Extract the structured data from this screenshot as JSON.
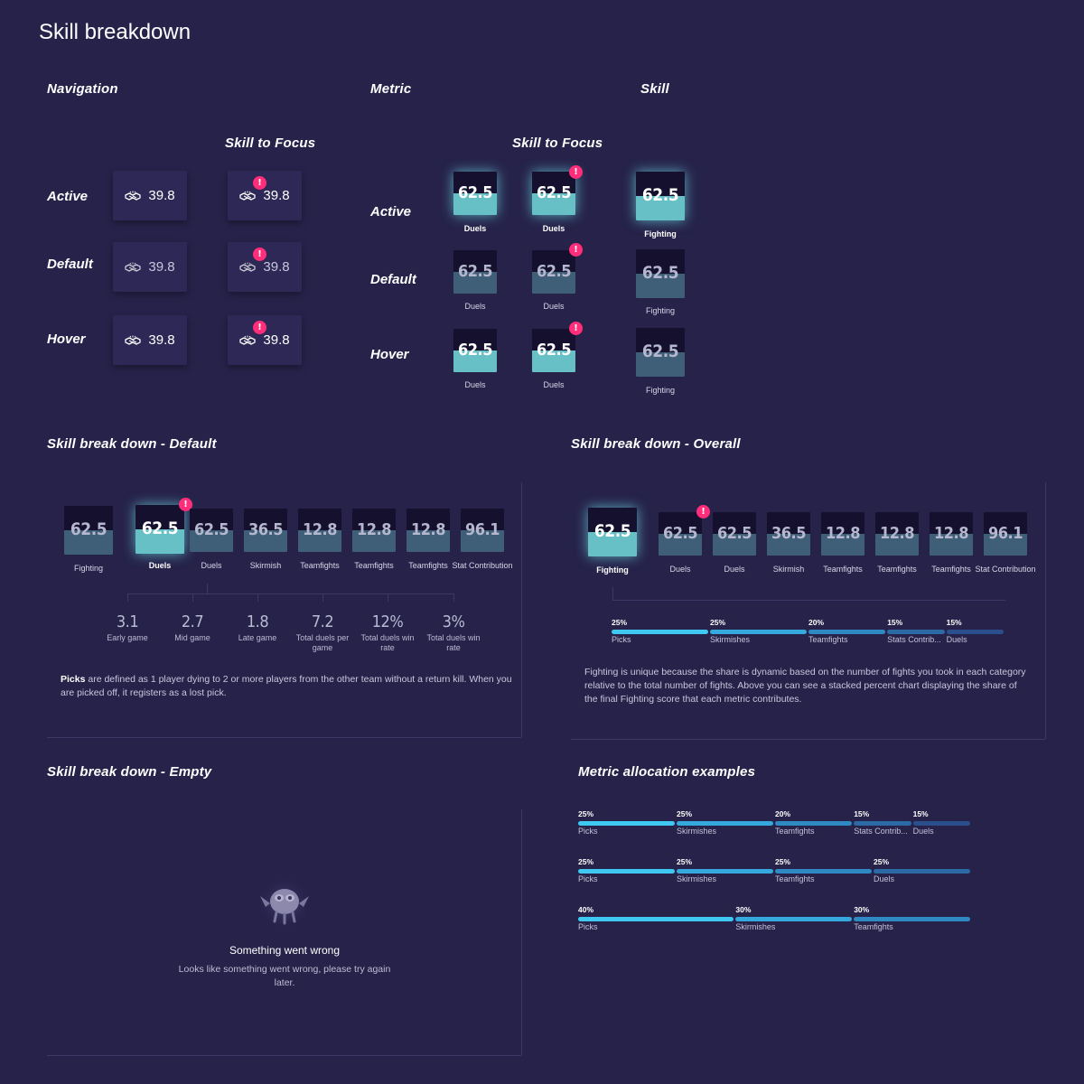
{
  "page_title": "Skill breakdown",
  "columns": {
    "navigation": "Navigation",
    "metric": "Metric",
    "skill": "Skill"
  },
  "skill_to_focus": "Skill to Focus",
  "states": [
    "Active",
    "Default",
    "Hover"
  ],
  "nav_value": "39.8",
  "nav_icon": "handshake-icon",
  "alert_glyph": "!",
  "metric_tile": {
    "value": "62.5",
    "caption": "Duels"
  },
  "skill_tile": {
    "value": "62.5",
    "caption": "Fighting"
  },
  "breakdown_default": {
    "title": "Skill break down - Default",
    "tiles": [
      {
        "value": "62.5",
        "caption": "Fighting"
      },
      {
        "value": "62.5",
        "caption": "Duels"
      },
      {
        "value": "62.5",
        "caption": "Duels"
      },
      {
        "value": "36.5",
        "caption": "Skirmish"
      },
      {
        "value": "12.8",
        "caption": "Teamfights"
      },
      {
        "value": "12.8",
        "caption": "Teamfights"
      },
      {
        "value": "12.8",
        "caption": "Teamfights"
      },
      {
        "value": "96.1",
        "caption": "Stat Contribution"
      }
    ],
    "sub_stats": [
      {
        "value": "3.1",
        "label": "Early game"
      },
      {
        "value": "2.7",
        "label": "Mid game"
      },
      {
        "value": "1.8",
        "label": "Late game"
      },
      {
        "value": "7.2",
        "label": "Total duels per game"
      },
      {
        "value": "12%",
        "label": "Total duels win rate"
      },
      {
        "value": "3%",
        "label": "Total duels win rate"
      }
    ],
    "desc_bold": "Picks",
    "desc_rest": " are defined as 1 player dying to 2 or more players from the other team without a return kill. When you are picked off, it registers as a lost pick."
  },
  "breakdown_overall": {
    "title": "Skill break down - Overall",
    "tiles": [
      {
        "value": "62.5",
        "caption": "Fighting"
      },
      {
        "value": "62.5",
        "caption": "Duels"
      },
      {
        "value": "62.5",
        "caption": "Duels"
      },
      {
        "value": "36.5",
        "caption": "Skirmish"
      },
      {
        "value": "12.8",
        "caption": "Teamfights"
      },
      {
        "value": "12.8",
        "caption": "Teamfights"
      },
      {
        "value": "12.8",
        "caption": "Teamfights"
      },
      {
        "value": "96.1",
        "caption": "Stat Contribution"
      }
    ],
    "bar": [
      {
        "pct": "25%",
        "label": "Picks",
        "share": 25,
        "color": "#3fc8f2"
      },
      {
        "pct": "25%",
        "label": "Skirmishes",
        "share": 25,
        "color": "#35a9dd"
      },
      {
        "pct": "20%",
        "label": "Teamfights",
        "share": 20,
        "color": "#2f8ac4"
      },
      {
        "pct": "15%",
        "label": "Stats Contrib...",
        "share": 15,
        "color": "#2c6aa6"
      },
      {
        "pct": "15%",
        "label": "Duels",
        "share": 15,
        "color": "#2b4f8c"
      }
    ],
    "desc": "Fighting is unique because the share is dynamic based on the number of fights you took in each category relative to the total number of fights. Above you can see a stacked percent chart displaying the share of the final Fighting score that each metric contributes."
  },
  "breakdown_empty": {
    "title": "Skill break down - Empty",
    "error_title": "Something went wrong",
    "error_text": "Looks like something went wrong, please try again later."
  },
  "allocation": {
    "title": "Metric allocation examples",
    "bars": [
      [
        {
          "pct": "25%",
          "label": "Picks",
          "share": 25,
          "color": "#3fc8f2"
        },
        {
          "pct": "25%",
          "label": "Skirmishes",
          "share": 25,
          "color": "#35a9dd"
        },
        {
          "pct": "20%",
          "label": "Teamfights",
          "share": 20,
          "color": "#2f8ac4"
        },
        {
          "pct": "15%",
          "label": "Stats Contrib...",
          "share": 15,
          "color": "#2c6aa6"
        },
        {
          "pct": "15%",
          "label": "Duels",
          "share": 15,
          "color": "#2b4f8c"
        }
      ],
      [
        {
          "pct": "25%",
          "label": "Picks",
          "share": 25,
          "color": "#3fc8f2"
        },
        {
          "pct": "25%",
          "label": "Skirmishes",
          "share": 25,
          "color": "#35a9dd"
        },
        {
          "pct": "25%",
          "label": "Teamfights",
          "share": 25,
          "color": "#2f8ac4"
        },
        {
          "pct": "25%",
          "label": "Duels",
          "share": 25,
          "color": "#2c6aa6"
        }
      ],
      [
        {
          "pct": "40%",
          "label": "Picks",
          "share": 40,
          "color": "#3fc8f2"
        },
        {
          "pct": "30%",
          "label": "Skirmishes",
          "share": 30,
          "color": "#35a9dd"
        },
        {
          "pct": "30%",
          "label": "Teamfights",
          "share": 30,
          "color": "#2f8ac4"
        }
      ]
    ]
  }
}
